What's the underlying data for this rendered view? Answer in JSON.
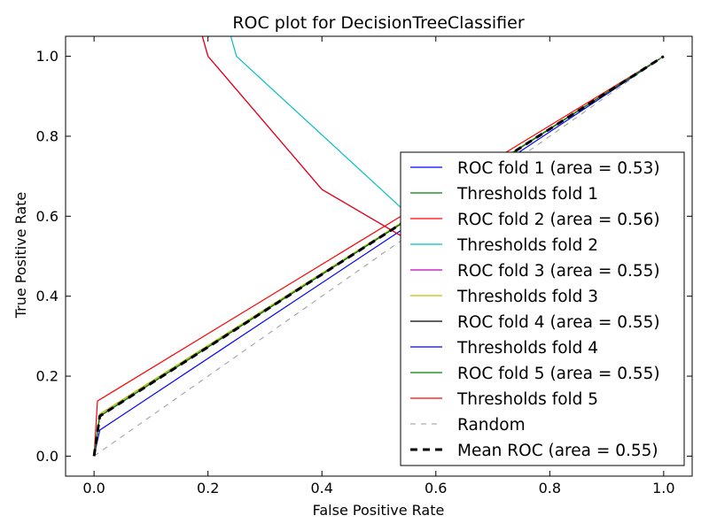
{
  "chart_data": {
    "type": "line",
    "title": "ROC plot for DecisionTreeClassifier",
    "xlabel": "False Positive Rate",
    "ylabel": "True Positive Rate",
    "xlim": [
      -0.05,
      1.05
    ],
    "ylim": [
      -0.05,
      1.05
    ],
    "xticks": [
      "0.0",
      "0.2",
      "0.4",
      "0.6",
      "0.8",
      "1.0"
    ],
    "yticks": [
      "0.0",
      "0.2",
      "0.4",
      "0.6",
      "0.8",
      "1.0"
    ],
    "grid": false,
    "legend_position": "lower-right",
    "series": [
      {
        "name": "ROC fold 1 (area = 0.53)",
        "color": "#0000ff",
        "dash": "solid",
        "x": [
          0.0,
          0.01,
          1.0
        ],
        "y": [
          0.0,
          0.065,
          1.0
        ]
      },
      {
        "name": "Thresholds fold 1",
        "color": "#008000",
        "dash": "solid",
        "x": [
          0.0,
          0.01,
          1.0
        ],
        "y": [
          0.0,
          0.105,
          1.0
        ]
      },
      {
        "name": "ROC fold 2 (area = 0.56)",
        "color": "#ff0000",
        "dash": "solid",
        "x": [
          0.0,
          0.006,
          1.0
        ],
        "y": [
          0.0,
          0.138,
          1.0
        ]
      },
      {
        "name": "Thresholds fold 2",
        "color": "#00bfbf",
        "dash": "solid",
        "x": [
          0.24,
          0.25,
          0.54,
          0.56,
          0.6
        ],
        "y": [
          1.05,
          1.0,
          0.62,
          0.6,
          0.57
        ]
      },
      {
        "name": "ROC fold 3 (area = 0.55)",
        "color": "#bf00bf",
        "dash": "solid",
        "x": [
          0.0,
          0.01,
          1.0
        ],
        "y": [
          0.0,
          0.1,
          1.0
        ]
      },
      {
        "name": "Thresholds fold 3",
        "color": "#bfbf00",
        "dash": "solid",
        "x": [
          0.0,
          0.01,
          1.0
        ],
        "y": [
          0.0,
          0.105,
          1.0
        ]
      },
      {
        "name": "ROC fold 4 (area = 0.55)",
        "color": "#000000",
        "dash": "solid",
        "x": [
          0.0,
          0.01,
          1.0
        ],
        "y": [
          0.0,
          0.1,
          1.0
        ]
      },
      {
        "name": "Thresholds fold 4",
        "color": "#0000ff",
        "dash": "solid",
        "x": [
          0.19,
          0.2,
          0.4,
          0.6
        ],
        "y": [
          1.05,
          1.0,
          0.667,
          0.5
        ]
      },
      {
        "name": "ROC fold 5 (area = 0.55)",
        "color": "#008000",
        "dash": "solid",
        "x": [
          0.0,
          0.01,
          1.0
        ],
        "y": [
          0.0,
          0.1,
          1.0
        ]
      },
      {
        "name": "Thresholds fold 5",
        "color": "#ff0000",
        "dash": "solid",
        "x": [
          0.19,
          0.2,
          0.4,
          0.6
        ],
        "y": [
          1.05,
          1.0,
          0.667,
          0.5
        ]
      },
      {
        "name": "Random",
        "color": "#999999",
        "dash": "dashed-thin",
        "x": [
          0.0,
          1.0
        ],
        "y": [
          0.0,
          1.0
        ]
      },
      {
        "name": "Mean ROC (area = 0.55)",
        "color": "#000000",
        "dash": "dashed-thick",
        "x": [
          0.0,
          0.01,
          1.0
        ],
        "y": [
          0.0,
          0.1,
          1.0
        ]
      }
    ]
  }
}
